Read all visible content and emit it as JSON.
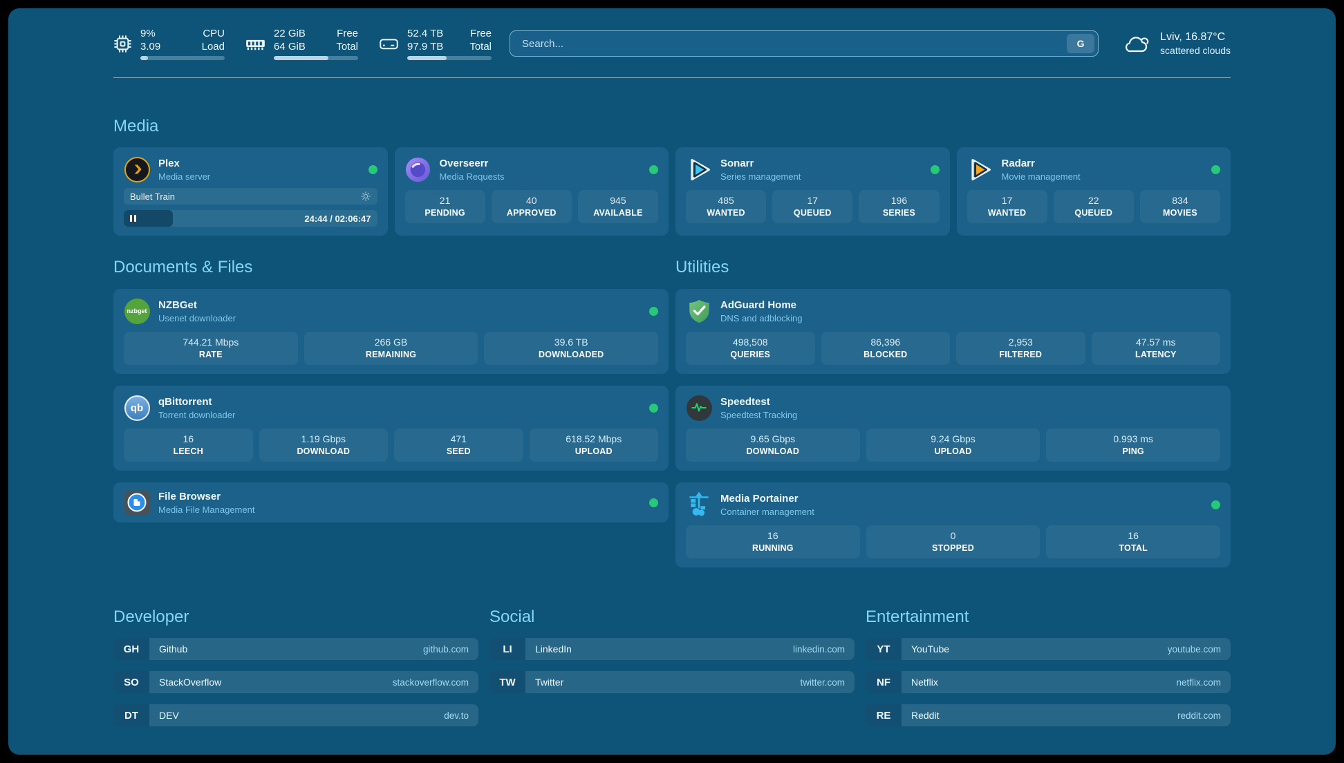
{
  "header": {
    "system_stats": [
      {
        "icon": "cpu-icon",
        "line1": "9%",
        "line2": "3.09",
        "label1": "CPU",
        "label2": "Load",
        "progress_pct": 9
      },
      {
        "icon": "memory-icon",
        "line1": "22 GiB",
        "line2": "64 GiB",
        "label1": "Free",
        "label2": "Total",
        "progress_pct": 65
      },
      {
        "icon": "disk-icon",
        "line1": "52.4 TB",
        "line2": "97.9 TB",
        "label1": "Free",
        "label2": "Total",
        "progress_pct": 47
      }
    ],
    "search": {
      "placeholder": "Search...",
      "engine_button": "G"
    },
    "weather": {
      "icon": "cloud-icon",
      "location_temp": "Lviv, 16.87°C",
      "condition": "scattered clouds"
    }
  },
  "sections": {
    "media": {
      "title": "Media",
      "plex": {
        "icon": "plex-icon",
        "name": "Plex",
        "subtitle": "Media server",
        "status": "online",
        "now_playing": {
          "title": "Bullet Train",
          "time_display": "24:44 / 02:06:47",
          "progress_pct": 19.5
        }
      },
      "overseerr": {
        "icon": "overseerr-icon",
        "name": "Overseerr",
        "subtitle": "Media Requests",
        "status": "online",
        "stats": [
          {
            "value": "21",
            "label": "PENDING"
          },
          {
            "value": "40",
            "label": "APPROVED"
          },
          {
            "value": "945",
            "label": "AVAILABLE"
          }
        ]
      },
      "sonarr": {
        "icon": "sonarr-icon",
        "name": "Sonarr",
        "subtitle": "Series management",
        "status": "online",
        "stats": [
          {
            "value": "485",
            "label": "WANTED"
          },
          {
            "value": "17",
            "label": "QUEUED"
          },
          {
            "value": "196",
            "label": "SERIES"
          }
        ]
      },
      "radarr": {
        "icon": "radarr-icon",
        "name": "Radarr",
        "subtitle": "Movie management",
        "status": "online",
        "stats": [
          {
            "value": "17",
            "label": "WANTED"
          },
          {
            "value": "22",
            "label": "QUEUED"
          },
          {
            "value": "834",
            "label": "MOVIES"
          }
        ]
      }
    },
    "documents": {
      "title": "Documents & Files",
      "nzbget": {
        "icon": "nzbget-icon",
        "name": "NZBGet",
        "subtitle": "Usenet downloader",
        "status": "online",
        "stats": [
          {
            "value": "744.21 Mbps",
            "label": "RATE"
          },
          {
            "value": "266 GB",
            "label": "REMAINING"
          },
          {
            "value": "39.6 TB",
            "label": "DOWNLOADED"
          }
        ]
      },
      "qbittorrent": {
        "icon": "qbittorrent-icon",
        "name": "qBittorrent",
        "subtitle": "Torrent downloader",
        "status": "online",
        "stats": [
          {
            "value": "16",
            "label": "LEECH"
          },
          {
            "value": "1.19 Gbps",
            "label": "DOWNLOAD"
          },
          {
            "value": "471",
            "label": "SEED"
          },
          {
            "value": "618.52 Mbps",
            "label": "UPLOAD"
          }
        ]
      },
      "filebrowser": {
        "icon": "filebrowser-icon",
        "name": "File Browser",
        "subtitle": "Media File Management",
        "status": "online"
      }
    },
    "utilities": {
      "title": "Utilities",
      "adguard": {
        "icon": "adguard-icon",
        "name": "AdGuard Home",
        "subtitle": "DNS and adblocking",
        "stats": [
          {
            "value": "498,508",
            "label": "QUERIES"
          },
          {
            "value": "86,396",
            "label": "BLOCKED"
          },
          {
            "value": "2,953",
            "label": "FILTERED"
          },
          {
            "value": "47.57 ms",
            "label": "LATENCY"
          }
        ]
      },
      "speedtest": {
        "icon": "speedtest-icon",
        "name": "Speedtest",
        "subtitle": "Speedtest Tracking",
        "stats": [
          {
            "value": "9.65 Gbps",
            "label": "DOWNLOAD"
          },
          {
            "value": "9.24 Gbps",
            "label": "UPLOAD"
          },
          {
            "value": "0.993 ms",
            "label": "PING"
          }
        ]
      },
      "portainer": {
        "icon": "portainer-icon",
        "name": "Media Portainer",
        "subtitle": "Container management",
        "status": "online",
        "stats": [
          {
            "value": "16",
            "label": "RUNNING"
          },
          {
            "value": "0",
            "label": "STOPPED"
          },
          {
            "value": "16",
            "label": "TOTAL"
          }
        ]
      }
    },
    "bookmarks": [
      {
        "title": "Developer",
        "links": [
          {
            "abbr": "GH",
            "name": "Github",
            "url": "github.com"
          },
          {
            "abbr": "SO",
            "name": "StackOverflow",
            "url": "stackoverflow.com"
          },
          {
            "abbr": "DT",
            "name": "DEV",
            "url": "dev.to"
          }
        ]
      },
      {
        "title": "Social",
        "links": [
          {
            "abbr": "LI",
            "name": "LinkedIn",
            "url": "linkedin.com"
          },
          {
            "abbr": "TW",
            "name": "Twitter",
            "url": "twitter.com"
          }
        ]
      },
      {
        "title": "Entertainment",
        "links": [
          {
            "abbr": "YT",
            "name": "YouTube",
            "url": "youtube.com"
          },
          {
            "abbr": "NF",
            "name": "Netflix",
            "url": "netflix.com"
          },
          {
            "abbr": "RE",
            "name": "Reddit",
            "url": "reddit.com"
          }
        ]
      }
    ]
  },
  "colors": {
    "background": "#0e5479",
    "card": "#1b6189",
    "section_title": "#85d6f6",
    "status_online": "#27c878",
    "subtitle": "#7fc6ec",
    "url_text": "#a5d8f3"
  }
}
